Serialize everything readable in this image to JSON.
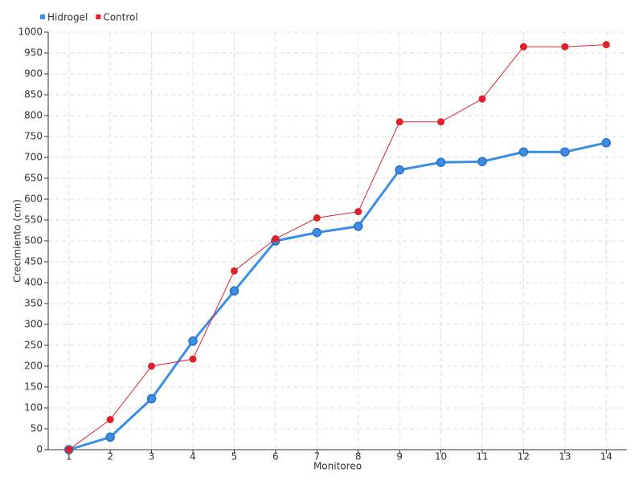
{
  "chart_data": {
    "type": "line",
    "x_label": "Monitoreo",
    "y_label": "Crecimiento (cm)",
    "x": [
      1,
      2,
      3,
      4,
      5,
      6,
      7,
      8,
      9,
      10,
      11,
      12,
      13,
      14
    ],
    "xlim": [
      0.5,
      14.5
    ],
    "xticks": [
      1,
      2,
      3,
      4,
      5,
      6,
      7,
      8,
      9,
      10,
      11,
      12,
      13,
      14
    ],
    "ylim": [
      0,
      1000
    ],
    "yticks": [
      0,
      50,
      100,
      150,
      200,
      250,
      300,
      350,
      400,
      450,
      500,
      550,
      600,
      650,
      700,
      750,
      800,
      850,
      900,
      950,
      1000
    ],
    "grid": true,
    "legend": "top-left",
    "series": [
      {
        "name": "Hidrogel",
        "color": "#3a8ee6",
        "values": [
          0,
          30,
          122,
          260,
          380,
          500,
          520,
          535,
          670,
          688,
          690,
          713,
          713,
          735
        ]
      },
      {
        "name": "Control",
        "color": "#e0202a",
        "values": [
          0,
          72,
          200,
          217,
          428,
          505,
          555,
          570,
          785,
          785,
          840,
          965,
          965,
          970
        ]
      }
    ]
  }
}
